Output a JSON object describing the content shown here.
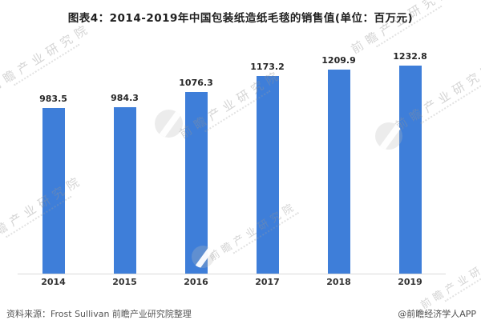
{
  "title": "图表4：2014-2019年中国包装纸造纸毛毯的销售值(单位：百万元)",
  "chart_data": {
    "type": "bar",
    "categories": [
      "2014",
      "2015",
      "2016",
      "2017",
      "2018",
      "2019"
    ],
    "values": [
      983.5,
      984.3,
      1076.3,
      1173.2,
      1209.9,
      1232.8
    ],
    "title": "图表4：2014-2019年中国包装纸造纸毛毯的销售值(单位：百万元)",
    "xlabel": "",
    "ylabel": "",
    "unit": "百万元",
    "ylim": [
      0,
      1300
    ],
    "grid": false,
    "legend": false,
    "data_labels": true,
    "bar_color": "#3E7ED9",
    "axis_line_color": "#d9d9d9"
  },
  "footer": {
    "source": "资料来源：Frost Sullivan 前瞻产业研究院整理",
    "attribution": "@前瞻经济学人APP"
  },
  "watermark": {
    "text": "前瞻产业研究院"
  },
  "colors": {
    "bar": "#3E7ED9",
    "title_text": "#1f1f1f",
    "label_text": "#262626",
    "footer_text": "#555555",
    "axis_line": "#d9d9d9",
    "watermark": "#949494"
  }
}
